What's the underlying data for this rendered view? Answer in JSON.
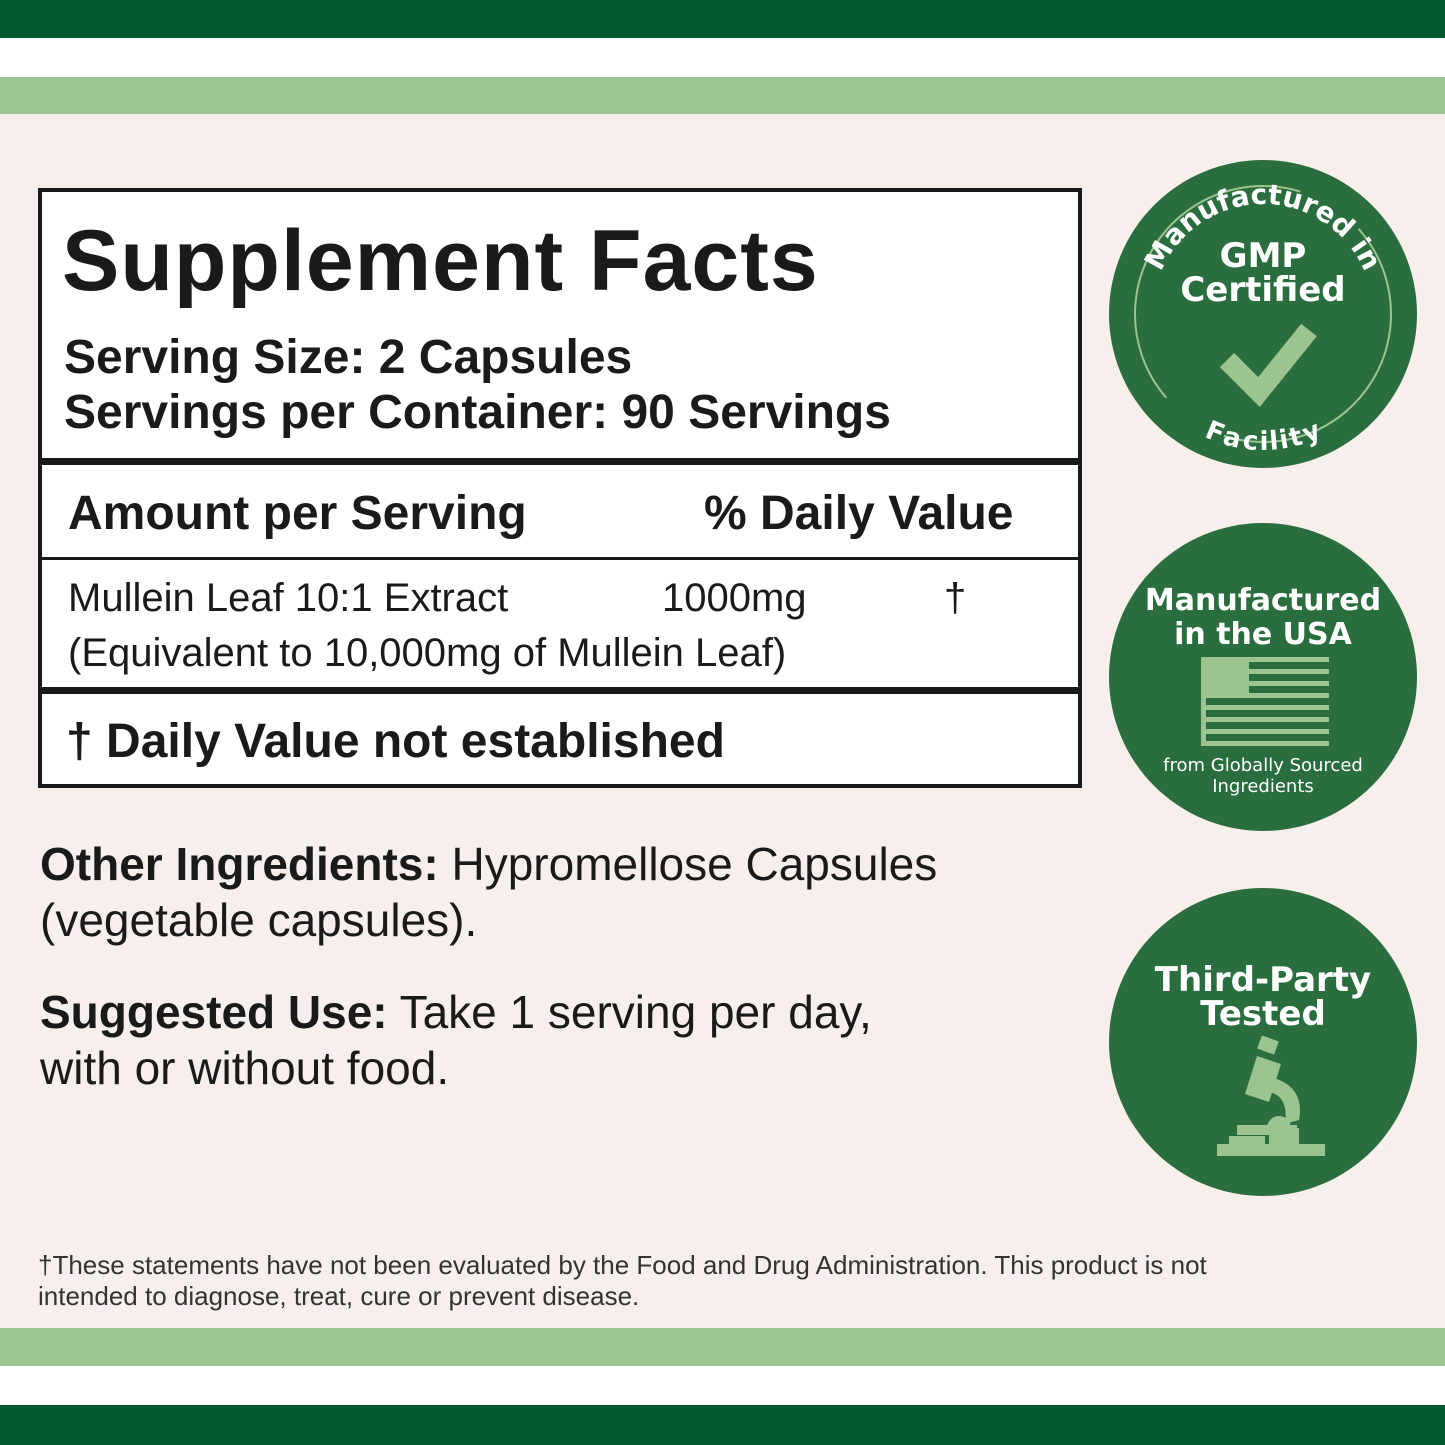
{
  "colors": {
    "dark_green": "#03592f",
    "light_green": "#9cc590",
    "background": "#f7efeb",
    "badge_green": "#2a6e3f",
    "badge_accent": "#9cc48e"
  },
  "facts": {
    "title": "Supplement Facts",
    "serving_size": "Serving Size: 2 Capsules",
    "servings_per_container": "Servings per Container: 90 Servings",
    "amount_header": "Amount per Serving",
    "dv_header": "% Daily Value",
    "ingredient": {
      "name": "Mullein Leaf 10:1 Extract",
      "amount": "1000mg",
      "dv": "†",
      "note": "(Equivalent to 10,000mg of Mullein Leaf)"
    },
    "footnote": "† Daily Value not established"
  },
  "other_ingredients": {
    "label": "Other Ingredients:",
    "text": " Hypromellose Capsules",
    "text2": "(vegetable capsules)."
  },
  "suggested_use": {
    "label": "Suggested Use:",
    "text": " Take 1 serving per day,",
    "text2": "with or without food."
  },
  "disclaimer": {
    "line1": "†These statements have not been evaluated by the Food and Drug Administration. This product is not",
    "line2": "intended to diagnose, treat, cure or prevent disease."
  },
  "badges": [
    {
      "arc_top": "Manufactured in",
      "title1": "GMP",
      "title2": "Certified",
      "arc_bottom": "Facility",
      "icon": "checkmark-icon"
    },
    {
      "title1": "Manufactured",
      "title2": "in the USA",
      "sub1": "from Globally Sourced",
      "sub2": "Ingredients",
      "icon": "us-flag-icon"
    },
    {
      "title1": "Third-Party",
      "title2": "Tested",
      "icon": "microscope-icon"
    }
  ]
}
